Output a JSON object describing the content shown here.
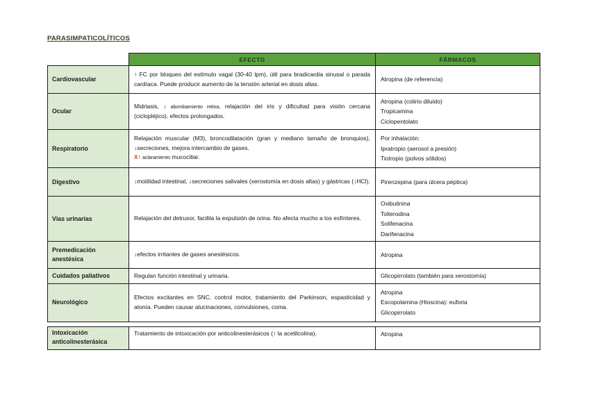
{
  "title": "PARASIMPATICOLÍTICOS",
  "headers": {
    "effect": "EFECTO",
    "drugs": "FÁRMACOS"
  },
  "main_table_rows": [
    {
      "system": "Cardiovascular",
      "effect": [
        {
          "text": "↑ FC por bloqueo del estímulo vagal (30-40 lpm), útil para bradicardia sinusal o parada cardíaca. Puede producir aumento de la tensión arterial en dosis altas."
        }
      ],
      "drugs": [
        "Atropina (de referencia)"
      ]
    },
    {
      "system": "Ocular",
      "effect": [
        {
          "text": "Midriasis, ↓ "
        },
        {
          "text": "abombamiento retina",
          "style": "small"
        },
        {
          "text": ", relajación del iris y dificultad para visión cercana (ciclopléjico), efectos prolongados."
        }
      ],
      "drugs": [
        "Atropina (colirio diluido)",
        "Tropicamina",
        "Ciclopentolato"
      ]
    },
    {
      "system": "Respiratorio",
      "effect": [
        {
          "text": "Relajación muscular (M3), broncodilatación (gran y mediano tamaño de bronquios), ↓secreciones, mejora intercambio de gases."
        },
        {
          "style": "break"
        },
        {
          "text": "X",
          "style": "red"
        },
        {
          "text": "↑ "
        },
        {
          "text": "aclaramiento",
          "style": "small"
        },
        {
          "text": " mucociliar."
        }
      ],
      "drugs": [
        "Por inhalación:",
        "Ipratropio (aerosol a presión)",
        "Tiotropio (polvos sólidos)"
      ]
    },
    {
      "system": "Digestivo",
      "effect": [
        {
          "text": "↓motilidad intestinal, ↓secreciones salivales (xerostomía en dosis altas) y gástricas (↓HCl)."
        }
      ],
      "drugs": [
        "Pirenzepina (para úlcera péptica)"
      ]
    },
    {
      "system": "Vías urinarias",
      "effect": [
        {
          "text": "Relajación del detrusor, facilita la expulsión de orina. No afecta mucho a los esfínteres."
        }
      ],
      "drugs": [
        "Oxibutinina",
        "Tolterodina",
        "Solifenacina",
        "Darifenacina"
      ]
    },
    {
      "system": "Premedicación anestésica",
      "effect": [
        {
          "text": "↓efectos irritantes de gases anestésicos."
        }
      ],
      "drugs": [
        "Atropina"
      ]
    },
    {
      "system": "Cuidados paliativos",
      "effect": [
        {
          "text": "Regulan función intestinal y urinaria."
        }
      ],
      "drugs": [
        "Glicopirrolato (también para xerostomía)"
      ]
    },
    {
      "system": "Neurológico",
      "effect": [
        {
          "text": "Efectos excitantes en SNC, control motor, tratamiento del Parkinson, espasticidad y atonía. Pueden causar alucinaciones, convulsiones, coma."
        }
      ],
      "drugs": [
        "Atropina",
        "Escopolamina (Hioscina): euforia",
        "Glicopirrolato"
      ]
    }
  ],
  "intoxication_table_rows": [
    {
      "system": "Intoxicación anticolinesterásica",
      "effect": [
        {
          "text": "Tratamiento de intoxicación por anticolinesterásicos (↑ la acetilcolina)."
        }
      ],
      "drugs": [
        "Atropina"
      ]
    }
  ],
  "colors": {
    "header_bg": "#5ba23e",
    "header_text": "#1d3a12",
    "row_label_bg": "#dcead3",
    "warning_x": "#e0362c"
  }
}
